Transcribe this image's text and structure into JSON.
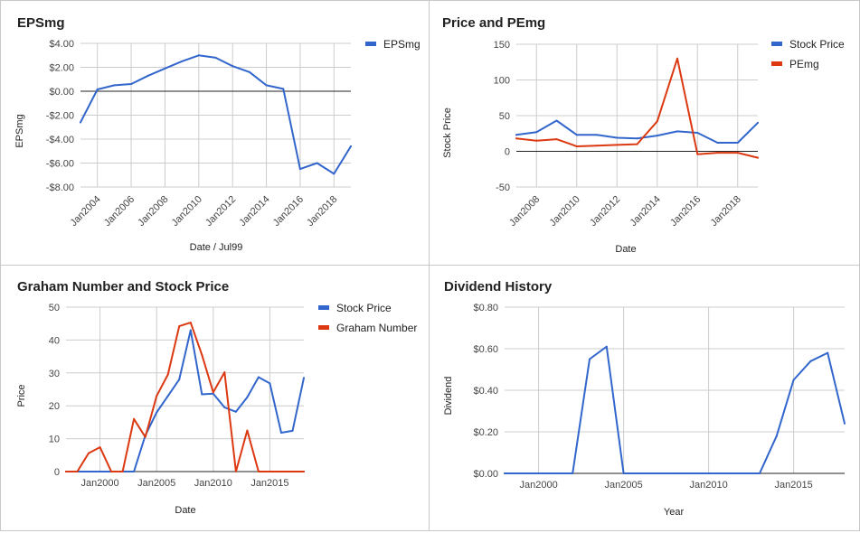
{
  "colors": {
    "blue": "#3366cc",
    "red": "#dc3912"
  },
  "chart_data": [
    {
      "type": "line",
      "title": "EPSmg",
      "xlabel": "Date / Jul99",
      "ylabel": "EPSmg",
      "ylim": [
        -8,
        4
      ],
      "yticks": [
        4,
        2,
        0,
        -2,
        -4,
        -6,
        -8
      ],
      "ytick_labels": [
        "$4.00",
        "$2.00",
        "$0.00",
        "-$2.00",
        "-$4.00",
        "-$6.00",
        "-$8.00"
      ],
      "xlim": [
        2003,
        2019
      ],
      "xticks": [
        2004,
        2006,
        2008,
        2010,
        2012,
        2014,
        2016,
        2018
      ],
      "xtick_labels": [
        "Jan2004",
        "Jan2006",
        "Jan2008",
        "Jan2010",
        "Jan2012",
        "Jan2014",
        "Jan2016",
        "Jan2018"
      ],
      "xtick_rotation": -45,
      "zero_line": true,
      "grid": true,
      "legend": "right",
      "series": [
        {
          "name": "EPSmg",
          "color": "#3366cc",
          "x": [
            2003,
            2004,
            2005,
            2006,
            2007,
            2008,
            2009,
            2010,
            2011,
            2012,
            2013,
            2014,
            2015,
            2016,
            2017,
            2018,
            2019
          ],
          "y": [
            -2.6,
            0.15,
            0.5,
            0.6,
            1.3,
            1.9,
            2.5,
            3.0,
            2.8,
            2.1,
            1.6,
            0.5,
            0.2,
            -6.5,
            -6.0,
            -6.9,
            -4.6
          ]
        }
      ]
    },
    {
      "type": "line",
      "title": "Price and PEmg",
      "xlabel": "Date",
      "ylabel": "Stock Price",
      "ylim": [
        -50,
        150
      ],
      "yticks": [
        150,
        100,
        50,
        0,
        -50
      ],
      "ytick_labels": [
        "150",
        "100",
        "50",
        "0",
        "-50"
      ],
      "xlim": [
        2007,
        2019
      ],
      "xticks": [
        2008,
        2010,
        2012,
        2014,
        2016,
        2018
      ],
      "xtick_labels": [
        "Jan2008",
        "Jan2010",
        "Jan2012",
        "Jan2014",
        "Jan2016",
        "Jan2018"
      ],
      "xtick_rotation": -45,
      "zero_line": true,
      "grid": true,
      "legend": "right",
      "series": [
        {
          "name": "Stock Price",
          "color": "#3366cc",
          "x": [
            2007,
            2008,
            2009,
            2010,
            2011,
            2012,
            2013,
            2014,
            2015,
            2016,
            2017,
            2018,
            2019
          ],
          "y": [
            23,
            27,
            43,
            23,
            23,
            19,
            18,
            22,
            28,
            26,
            12,
            12,
            40
          ]
        },
        {
          "name": "PEmg",
          "color": "#dc3912",
          "x": [
            2007,
            2008,
            2009,
            2010,
            2011,
            2012,
            2013,
            2014,
            2015,
            2016,
            2017,
            2018,
            2019
          ],
          "y": [
            18,
            15,
            17,
            7,
            8,
            9,
            10,
            42,
            130,
            -4,
            -2,
            -2,
            -9
          ]
        }
      ]
    },
    {
      "type": "line",
      "title": "Graham Number and Stock Price",
      "xlabel": "Date",
      "ylabel": "Price",
      "ylim": [
        0,
        50
      ],
      "yticks": [
        50,
        40,
        30,
        20,
        10,
        0
      ],
      "ytick_labels": [
        "50",
        "40",
        "30",
        "20",
        "10",
        "0"
      ],
      "xlim": [
        1997,
        2018
      ],
      "xticks": [
        2000,
        2005,
        2010,
        2015
      ],
      "xtick_labels": [
        "Jan2000",
        "Jan2005",
        "Jan2010",
        "Jan2015"
      ],
      "xtick_rotation": 0,
      "zero_line": true,
      "grid": true,
      "legend": "right",
      "series": [
        {
          "name": "Stock Price",
          "color": "#3366cc",
          "x": [
            1997,
            1998,
            1999,
            2000,
            2001,
            2002,
            2003,
            2004,
            2005,
            2006,
            2007,
            2008,
            2009,
            2010,
            2011,
            2012,
            2013,
            2014,
            2015,
            2016,
            2017,
            2018
          ],
          "y": [
            0,
            0,
            0,
            0,
            0,
            0,
            0,
            11,
            18,
            23,
            28,
            43,
            23.5,
            23.7,
            19.5,
            18.2,
            22.6,
            28.7,
            26.8,
            11.8,
            12.4,
            28.5
          ]
        },
        {
          "name": "Graham Number",
          "color": "#dc3912",
          "x": [
            1997,
            1998,
            1999,
            2000,
            2001,
            2002,
            2003,
            2004,
            2005,
            2006,
            2007,
            2008,
            2009,
            2010,
            2011,
            2012,
            2013,
            2014,
            2015,
            2016,
            2017,
            2018
          ],
          "y": [
            0,
            0,
            5.6,
            7.4,
            0,
            0,
            16,
            10.5,
            23,
            29.5,
            44.2,
            45.3,
            35.5,
            24.1,
            30.2,
            0,
            12.5,
            0,
            0,
            0,
            0,
            0
          ]
        }
      ]
    },
    {
      "type": "line",
      "title": "Dividend History",
      "xlabel": "Year",
      "ylabel": "Dividend",
      "ylim": [
        0,
        0.8
      ],
      "yticks": [
        0.8,
        0.6,
        0.4,
        0.2,
        0
      ],
      "ytick_labels": [
        "$0.80",
        "$0.60",
        "$0.40",
        "$0.20",
        "$0.00"
      ],
      "xlim": [
        1998,
        2018
      ],
      "xticks": [
        2000,
        2005,
        2010,
        2015
      ],
      "xtick_labels": [
        "Jan2000",
        "Jan2005",
        "Jan2010",
        "Jan2015"
      ],
      "xtick_rotation": 0,
      "zero_line": true,
      "grid": true,
      "legend": "none",
      "series": [
        {
          "name": "",
          "color": "#3366cc",
          "x": [
            1998,
            1999,
            2000,
            2001,
            2002,
            2003,
            2004,
            2005,
            2006,
            2007,
            2008,
            2009,
            2010,
            2011,
            2012,
            2013,
            2014,
            2015,
            2016,
            2017,
            2018
          ],
          "y": [
            0,
            0,
            0,
            0,
            0,
            0.55,
            0.61,
            0,
            0,
            0,
            0,
            0,
            0,
            0,
            0,
            0,
            0.18,
            0.45,
            0.54,
            0.58,
            0.24
          ]
        }
      ]
    }
  ]
}
